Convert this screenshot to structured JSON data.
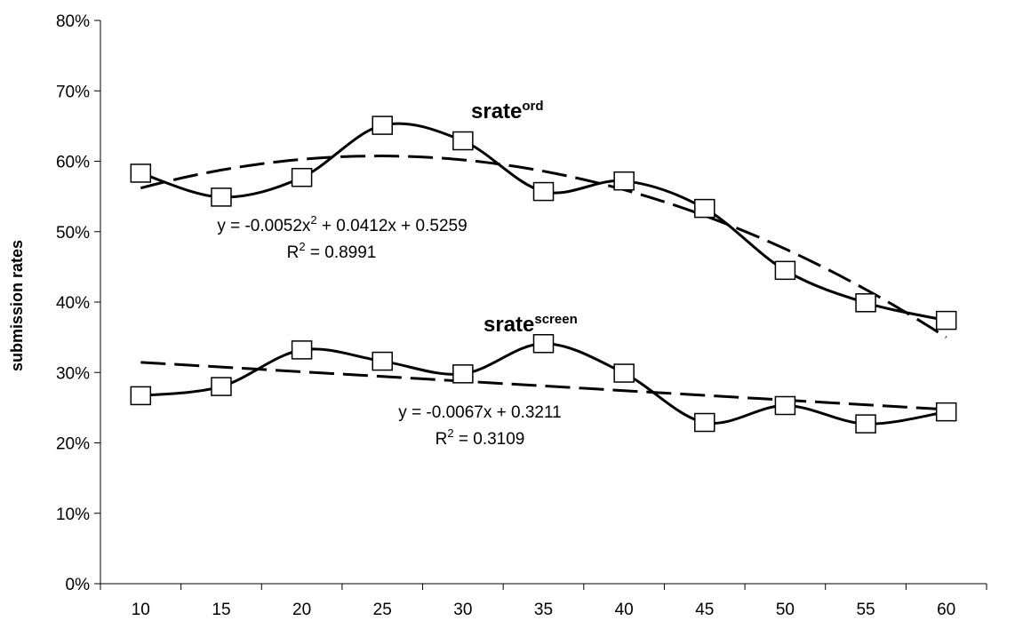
{
  "chart_data": {
    "type": "line",
    "title": "",
    "xlabel": "",
    "ylabel": "submission rates",
    "ylim": [
      0,
      0.8
    ],
    "y_ticks": [
      "0%",
      "10%",
      "20%",
      "30%",
      "40%",
      "50%",
      "60%",
      "70%",
      "80%"
    ],
    "categories": [
      "10",
      "15",
      "20",
      "25",
      "30",
      "35",
      "40",
      "45",
      "50",
      "55",
      "60"
    ],
    "x": [
      10,
      15,
      20,
      25,
      30,
      35,
      40,
      45,
      50,
      55,
      60
    ],
    "grid": false,
    "legend": "none",
    "series": [
      {
        "label_base": "srate",
        "label_sup": "ord",
        "values": [
          0.583,
          0.549,
          0.577,
          0.651,
          0.629,
          0.557,
          0.572,
          0.533,
          0.445,
          0.399,
          0.374
        ],
        "trendline": {
          "type": "polynomial",
          "coefficients": [
            -0.0052,
            0.0412,
            0.5259
          ],
          "equation_parts": [
            "y = -0.0052x",
            "2",
            " + 0.0412x + 0.5259"
          ],
          "r2_parts": [
            "R",
            "2",
            " = 0.8991"
          ]
        }
      },
      {
        "label_base": "srate",
        "label_sup": "screen",
        "values": [
          0.267,
          0.28,
          0.332,
          0.316,
          0.298,
          0.341,
          0.299,
          0.229,
          0.253,
          0.227,
          0.244
        ],
        "trendline": {
          "type": "linear",
          "coefficients": [
            -0.0067,
            0.3211
          ],
          "equation_parts": [
            "y = -0.0067x + 0.3211"
          ],
          "r2_parts": [
            "R",
            "2",
            " = 0.3109"
          ]
        }
      }
    ]
  }
}
